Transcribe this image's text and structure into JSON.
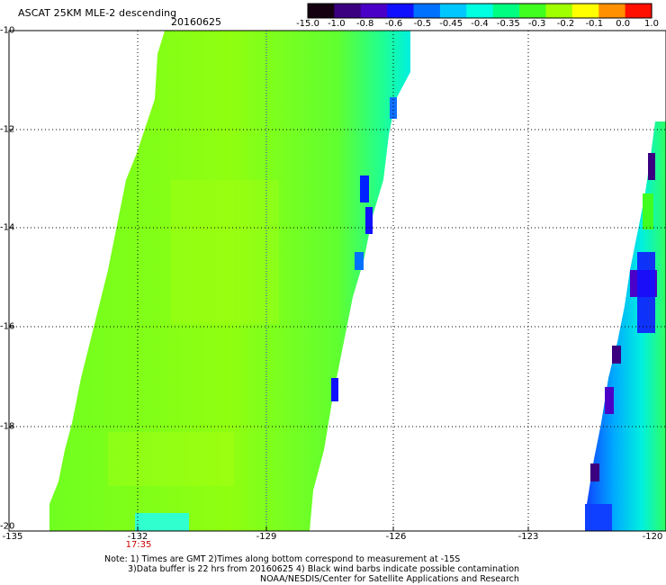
{
  "header": {
    "title": "ASCAT 25KM MLE-2 descending",
    "date": "20160625"
  },
  "colorbar": {
    "labels": [
      "-15.0",
      "-1.0",
      "-0.8",
      "-0.6",
      "-0.5",
      "-0.45",
      "-0.4",
      "-0.35",
      "-0.3",
      "-0.2",
      "-0.1",
      "0.0",
      "1.0"
    ],
    "colors": [
      "#140010",
      "#3a0080",
      "#4b00c8",
      "#1010ff",
      "#0070ff",
      "#00c8ff",
      "#00ffe0",
      "#00ff80",
      "#40ff20",
      "#a0ff00",
      "#ffff00",
      "#ff9000",
      "#ff1000"
    ]
  },
  "axes": {
    "lat_labels": [
      "-10",
      "-12",
      "-14",
      "-16",
      "-18",
      "-20"
    ],
    "lon_labels": [
      "-135",
      "-132",
      "-129",
      "-126",
      "-123",
      "-120"
    ]
  },
  "time_label": "17:35",
  "notes": {
    "line1": "Note: 1) Times are GMT 2)Times along bottom correspond to measurement at -15S",
    "line2": "3)Data buffer is 22 hrs from 20160625 4) Black wind barbs indicate possible contamination",
    "line3": "NOAA/NESDIS/Center for Satellite Applications and Research"
  }
}
